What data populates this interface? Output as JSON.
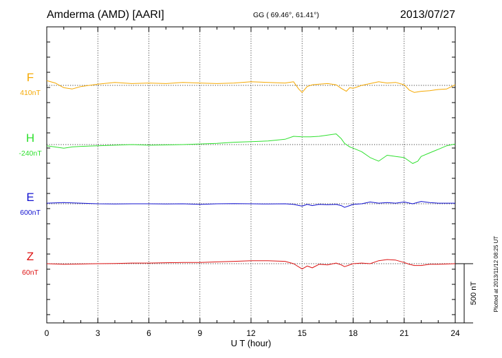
{
  "chart_data": {
    "type": "line",
    "header": {
      "station": "Amderma (AMD)  [AARI]",
      "coords": "GG ( 69.46°,  61.41°)",
      "date": "2013/07/27"
    },
    "xlabel": "U T (hour)",
    "xlim": [
      0,
      24
    ],
    "xticks": [
      0,
      3,
      6,
      9,
      12,
      15,
      18,
      21,
      24
    ],
    "scale_bar": {
      "label": "500 nT",
      "value_nT": 500
    },
    "plotted_note": "Plotted at 2013/11/12 08:25 UT",
    "series": [
      {
        "name": "F",
        "baseline": "410nT",
        "color": "#f5a800",
        "x": [
          0,
          0.5,
          1,
          1.5,
          2,
          3,
          4,
          5,
          6,
          7,
          8,
          9,
          10,
          11,
          12,
          13,
          14,
          14.5,
          14.8,
          15,
          15.3,
          15.6,
          16,
          16.5,
          17,
          17.3,
          17.6,
          17.8,
          18,
          18.5,
          19,
          19.5,
          20,
          20.5,
          21,
          21.3,
          21.6,
          22,
          22.5,
          23,
          23.5,
          24
        ],
        "values": [
          40,
          20,
          -20,
          -30,
          -10,
          10,
          25,
          15,
          20,
          15,
          25,
          20,
          15,
          20,
          30,
          25,
          20,
          30,
          -30,
          -60,
          -10,
          5,
          10,
          15,
          5,
          -25,
          -50,
          -20,
          -25,
          0,
          15,
          30,
          20,
          25,
          5,
          -40,
          -60,
          -50,
          -45,
          -35,
          -30,
          5
        ]
      },
      {
        "name": "H",
        "baseline": "-240nT",
        "color": "#2ee02e",
        "x": [
          0,
          1,
          1.5,
          2,
          3,
          4,
          5,
          6,
          7,
          8,
          9,
          10,
          11,
          12,
          13,
          14,
          14.5,
          15,
          15.5,
          16,
          16.5,
          17,
          17.3,
          17.5,
          17.8,
          18,
          18.5,
          19,
          19.5,
          20,
          20.5,
          21,
          21.5,
          21.8,
          22,
          22.5,
          23,
          23.5,
          24
        ],
        "values": [
          -10,
          -30,
          -20,
          -15,
          -10,
          -5,
          0,
          -5,
          -3,
          0,
          5,
          10,
          20,
          25,
          30,
          45,
          70,
          65,
          65,
          70,
          80,
          90,
          50,
          10,
          -20,
          -30,
          -60,
          -110,
          -140,
          -90,
          -100,
          -110,
          -160,
          -140,
          -100,
          -70,
          -40,
          -10,
          5
        ]
      },
      {
        "name": "E",
        "baseline": "600nT",
        "color": "#1010d0",
        "x": [
          0,
          1,
          2,
          3,
          4,
          5,
          6,
          7,
          8,
          9,
          10,
          11,
          12,
          13,
          14,
          14.5,
          15,
          15.3,
          15.6,
          16,
          16.5,
          17,
          17.3,
          17.5,
          18,
          18.5,
          19,
          19.5,
          20,
          20.5,
          21,
          21.5,
          22,
          22.5,
          23,
          24
        ],
        "values": [
          5,
          10,
          5,
          0,
          -2,
          0,
          0,
          -2,
          0,
          -5,
          0,
          2,
          0,
          -2,
          0,
          -5,
          -20,
          -5,
          -15,
          -5,
          -8,
          -5,
          -15,
          -30,
          -5,
          0,
          15,
          5,
          10,
          5,
          15,
          0,
          20,
          10,
          5,
          5
        ]
      },
      {
        "name": "Z",
        "baseline": "60nT",
        "color": "#dd1010",
        "x": [
          0,
          1,
          2,
          3,
          4,
          5,
          6,
          7,
          8,
          9,
          10,
          11,
          12,
          13,
          14,
          14.5,
          15,
          15.3,
          15.6,
          16,
          16.5,
          17,
          17.3,
          17.5,
          18,
          18.5,
          19,
          19.5,
          20,
          20.5,
          21,
          21.3,
          21.6,
          22,
          22.5,
          23,
          24
        ],
        "values": [
          0,
          -5,
          -3,
          0,
          2,
          5,
          5,
          8,
          10,
          10,
          15,
          20,
          25,
          25,
          20,
          0,
          -45,
          -20,
          -35,
          -5,
          -10,
          5,
          -10,
          -25,
          0,
          5,
          0,
          25,
          35,
          30,
          10,
          -5,
          -15,
          -15,
          -5,
          -5,
          0
        ]
      }
    ]
  }
}
